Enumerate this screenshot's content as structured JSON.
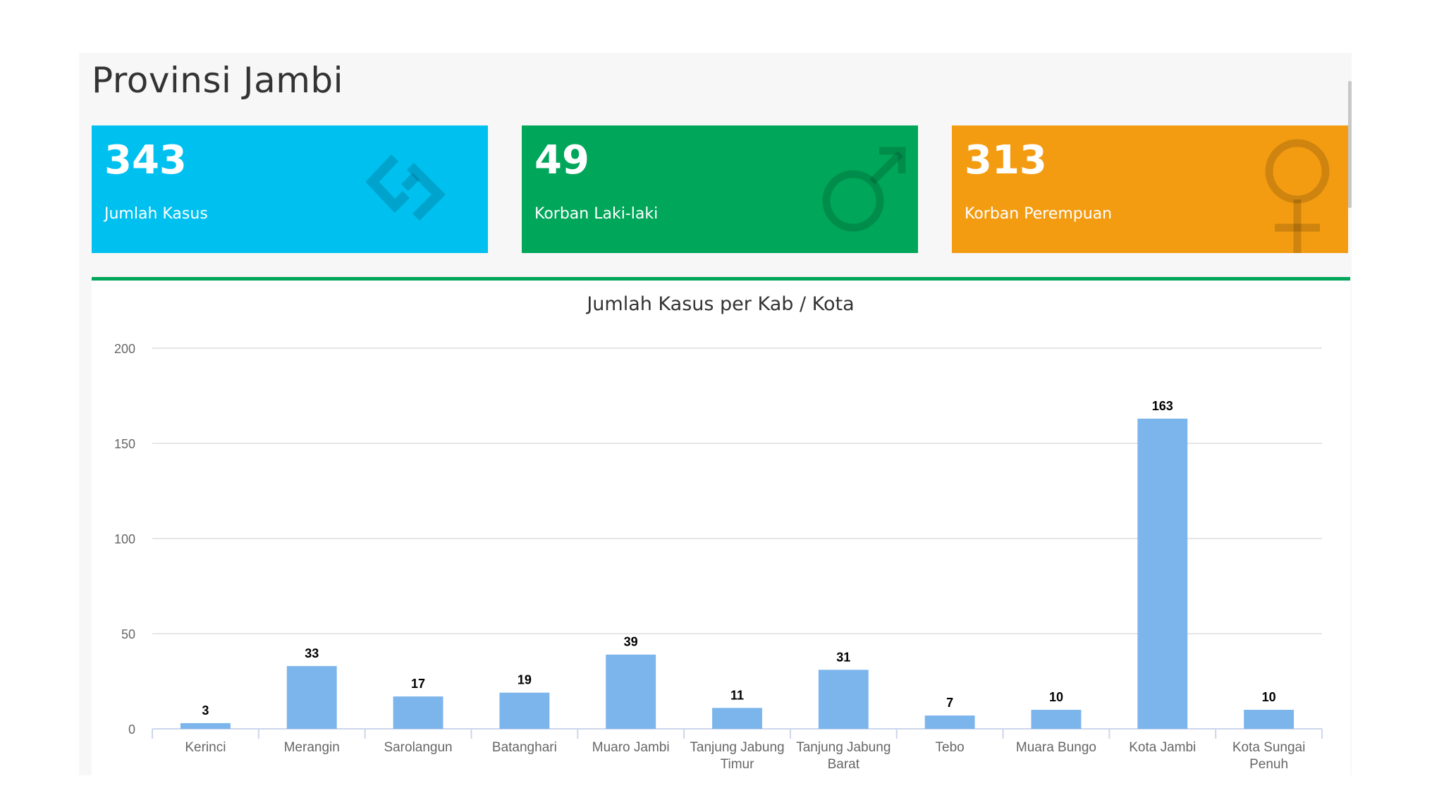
{
  "page": {
    "title": "Provinsi Jambi"
  },
  "stats": [
    {
      "value": "343",
      "label": "Jumlah Kasus",
      "color": "#00c0ef",
      "icon": "share-alt-icon"
    },
    {
      "value": "49",
      "label": "Korban Laki-laki",
      "color": "#00a65a",
      "icon": "male-symbol-icon"
    },
    {
      "value": "313",
      "label": "Korban Perempuan",
      "color": "#f39c12",
      "icon": "female-symbol-icon"
    }
  ],
  "chart_data": {
    "type": "bar",
    "title": "Jumlah Kasus per Kab / Kota",
    "categories": [
      "Kerinci",
      "Merangin",
      "Sarolangun",
      "Batanghari",
      "Muaro Jambi",
      "Tanjung Jabung Timur",
      "Tanjung Jabung Barat",
      "Tebo",
      "Muara Bungo",
      "Kota Jambi",
      "Kota Sungai Penuh"
    ],
    "category_lines": [
      [
        "Kerinci"
      ],
      [
        "Merangin"
      ],
      [
        "Sarolangun"
      ],
      [
        "Batanghari"
      ],
      [
        "Muaro Jambi"
      ],
      [
        "Tanjung Jabung",
        "Timur"
      ],
      [
        "Tanjung Jabung",
        "Barat"
      ],
      [
        "Tebo"
      ],
      [
        "Muara Bungo"
      ],
      [
        "Kota Jambi"
      ],
      [
        "Kota Sungai",
        "Penuh"
      ]
    ],
    "values": [
      3,
      33,
      17,
      19,
      39,
      11,
      31,
      7,
      10,
      163,
      10
    ],
    "ylim": [
      0,
      200
    ],
    "yticks": [
      0,
      50,
      100,
      150,
      200
    ],
    "grid": true,
    "bar_color": "#7cb5ec"
  }
}
